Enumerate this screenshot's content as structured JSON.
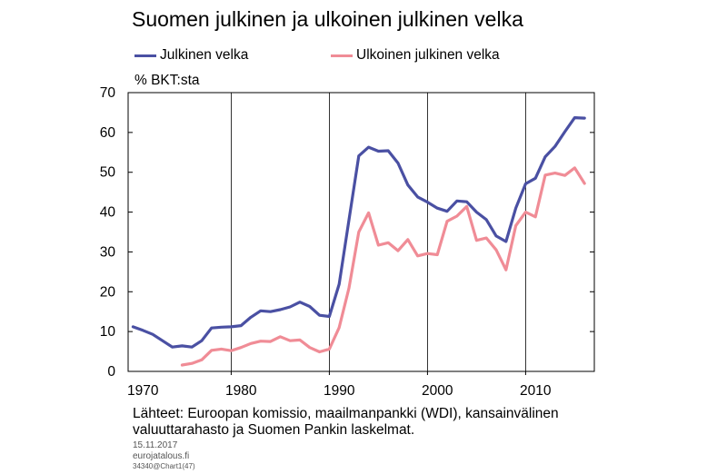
{
  "title": "Suomen julkinen ja ulkoinen julkinen velka",
  "unit_label": "% BKT:sta",
  "source_note": "Lähteet: Euroopan komissio, maailmanpankki (WDI), kansainvälinen valuuttarahasto ja Suomen Pankin laskelmat.",
  "date": "15.11.2017",
  "site": "eurojatalous.fi",
  "chart_code": "34340@Chart1(47)",
  "chart_data": {
    "type": "line",
    "title": "Suomen julkinen ja ulkoinen julkinen velka",
    "ylabel": "% BKT:sta",
    "xlabel": "",
    "xlim": [
      1968.5,
      2016
    ],
    "ylim": [
      0,
      70
    ],
    "y_ticks": [
      0,
      10,
      20,
      30,
      40,
      50,
      60,
      70
    ],
    "x_ticks": [
      1970,
      1980,
      1990,
      2000,
      2010
    ],
    "x_gridlines": [
      1979,
      1989,
      1999,
      2009
    ],
    "grid": "vertical",
    "legend_position": "top",
    "series": [
      {
        "name": "Julkinen velka",
        "color": "#4a50a3",
        "points": [
          [
            1969,
            11.2
          ],
          [
            1970,
            10.3
          ],
          [
            1971,
            9.3
          ],
          [
            1972,
            7.7
          ],
          [
            1973,
            6.1
          ],
          [
            1974,
            6.4
          ],
          [
            1975,
            6.1
          ],
          [
            1976,
            7.7
          ],
          [
            1977,
            10.9
          ],
          [
            1978,
            11.1
          ],
          [
            1979,
            11.2
          ],
          [
            1980,
            11.5
          ],
          [
            1981,
            13.6
          ],
          [
            1982,
            15.2
          ],
          [
            1983,
            15.0
          ],
          [
            1984,
            15.5
          ],
          [
            1985,
            16.2
          ],
          [
            1986,
            17.4
          ],
          [
            1987,
            16.3
          ],
          [
            1988,
            14.1
          ],
          [
            1989,
            13.8
          ],
          [
            1990,
            21.9
          ],
          [
            1991,
            38.0
          ],
          [
            1992,
            54.1
          ],
          [
            1993,
            56.3
          ],
          [
            1994,
            55.3
          ],
          [
            1995,
            55.4
          ],
          [
            1996,
            52.3
          ],
          [
            1997,
            46.8
          ],
          [
            1998,
            43.8
          ],
          [
            1999,
            42.5
          ],
          [
            2000,
            41.0
          ],
          [
            2001,
            40.2
          ],
          [
            2002,
            42.8
          ],
          [
            2003,
            42.6
          ],
          [
            2004,
            40.0
          ],
          [
            2005,
            38.1
          ],
          [
            2006,
            34.0
          ],
          [
            2007,
            32.6
          ],
          [
            2008,
            41.0
          ],
          [
            2009,
            47.1
          ],
          [
            2010,
            48.5
          ],
          [
            2011,
            53.9
          ],
          [
            2012,
            56.5
          ],
          [
            2013,
            60.2
          ],
          [
            2014,
            63.7
          ],
          [
            2015,
            63.6
          ]
        ]
      },
      {
        "name": "Ulkoinen julkinen velka",
        "color": "#f08c96",
        "points": [
          [
            1974,
            1.6
          ],
          [
            1975,
            2.0
          ],
          [
            1976,
            2.9
          ],
          [
            1977,
            5.3
          ],
          [
            1978,
            5.6
          ],
          [
            1979,
            5.2
          ],
          [
            1980,
            6.0
          ],
          [
            1981,
            7.0
          ],
          [
            1982,
            7.6
          ],
          [
            1983,
            7.5
          ],
          [
            1984,
            8.7
          ],
          [
            1985,
            7.7
          ],
          [
            1986,
            7.9
          ],
          [
            1987,
            6.0
          ],
          [
            1988,
            4.9
          ],
          [
            1989,
            5.6
          ],
          [
            1990,
            11.0
          ],
          [
            1991,
            20.9
          ],
          [
            1992,
            35.0
          ],
          [
            1993,
            39.8
          ],
          [
            1994,
            31.7
          ],
          [
            1995,
            32.3
          ],
          [
            1996,
            30.3
          ],
          [
            1997,
            33.1
          ],
          [
            1998,
            29.0
          ],
          [
            1999,
            29.6
          ],
          [
            2000,
            29.3
          ],
          [
            2001,
            37.7
          ],
          [
            2002,
            39.0
          ],
          [
            2003,
            41.4
          ],
          [
            2004,
            32.9
          ],
          [
            2005,
            33.5
          ],
          [
            2006,
            30.5
          ],
          [
            2007,
            25.5
          ],
          [
            2008,
            36.6
          ],
          [
            2009,
            40.0
          ],
          [
            2010,
            38.8
          ],
          [
            2011,
            49.3
          ],
          [
            2012,
            49.8
          ],
          [
            2013,
            49.2
          ],
          [
            2014,
            51.1
          ],
          [
            2015,
            47.2
          ]
        ]
      }
    ]
  }
}
